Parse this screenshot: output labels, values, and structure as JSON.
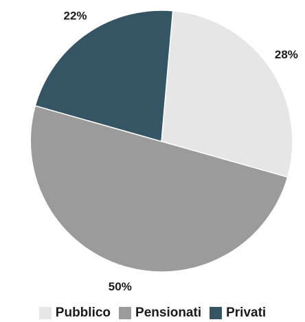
{
  "chart_data": {
    "type": "pie",
    "categories": [
      "Pubblico",
      "Pensionati",
      "Privati"
    ],
    "values": [
      28,
      50,
      22
    ],
    "labels": [
      "28%",
      "50%",
      "22%"
    ],
    "colors": [
      "#e6e6e6",
      "#9b9b9b",
      "#355565"
    ],
    "legend_position": "bottom"
  }
}
